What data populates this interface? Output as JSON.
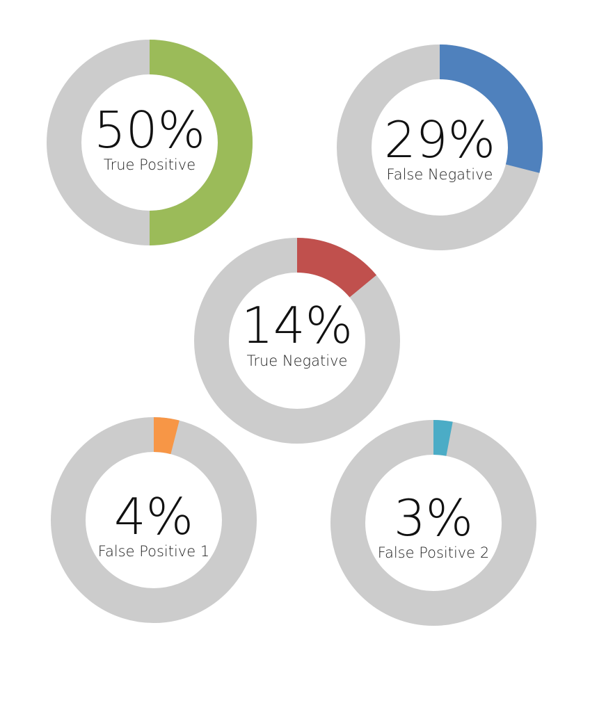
{
  "chart_data": [
    {
      "type": "pie",
      "donut": true,
      "start_angle": "top",
      "direction": "clockwise",
      "value": 50,
      "value_label": "50%",
      "label": "True Positive",
      "color": "#9bbb59",
      "track_color": "#cccccc"
    },
    {
      "type": "pie",
      "donut": true,
      "start_angle": "top",
      "direction": "clockwise",
      "value": 29,
      "value_label": "29%",
      "label": "False Negative",
      "color": "#4f81bd",
      "track_color": "#cccccc"
    },
    {
      "type": "pie",
      "donut": true,
      "start_angle": "top",
      "direction": "clockwise",
      "value": 14,
      "value_label": "14%",
      "label": "True Negative",
      "color": "#c0504d",
      "track_color": "#cccccc"
    },
    {
      "type": "pie",
      "donut": true,
      "start_angle": "top",
      "direction": "clockwise",
      "value": 4,
      "value_label": "4%",
      "label": "False Positive 1",
      "color": "#f79646",
      "track_color": "#cccccc"
    },
    {
      "type": "pie",
      "donut": true,
      "start_angle": "top",
      "direction": "clockwise",
      "value": 3,
      "value_label": "3%",
      "label": "False Positive 2",
      "color": "#4bacc6",
      "track_color": "#cccccc"
    }
  ]
}
